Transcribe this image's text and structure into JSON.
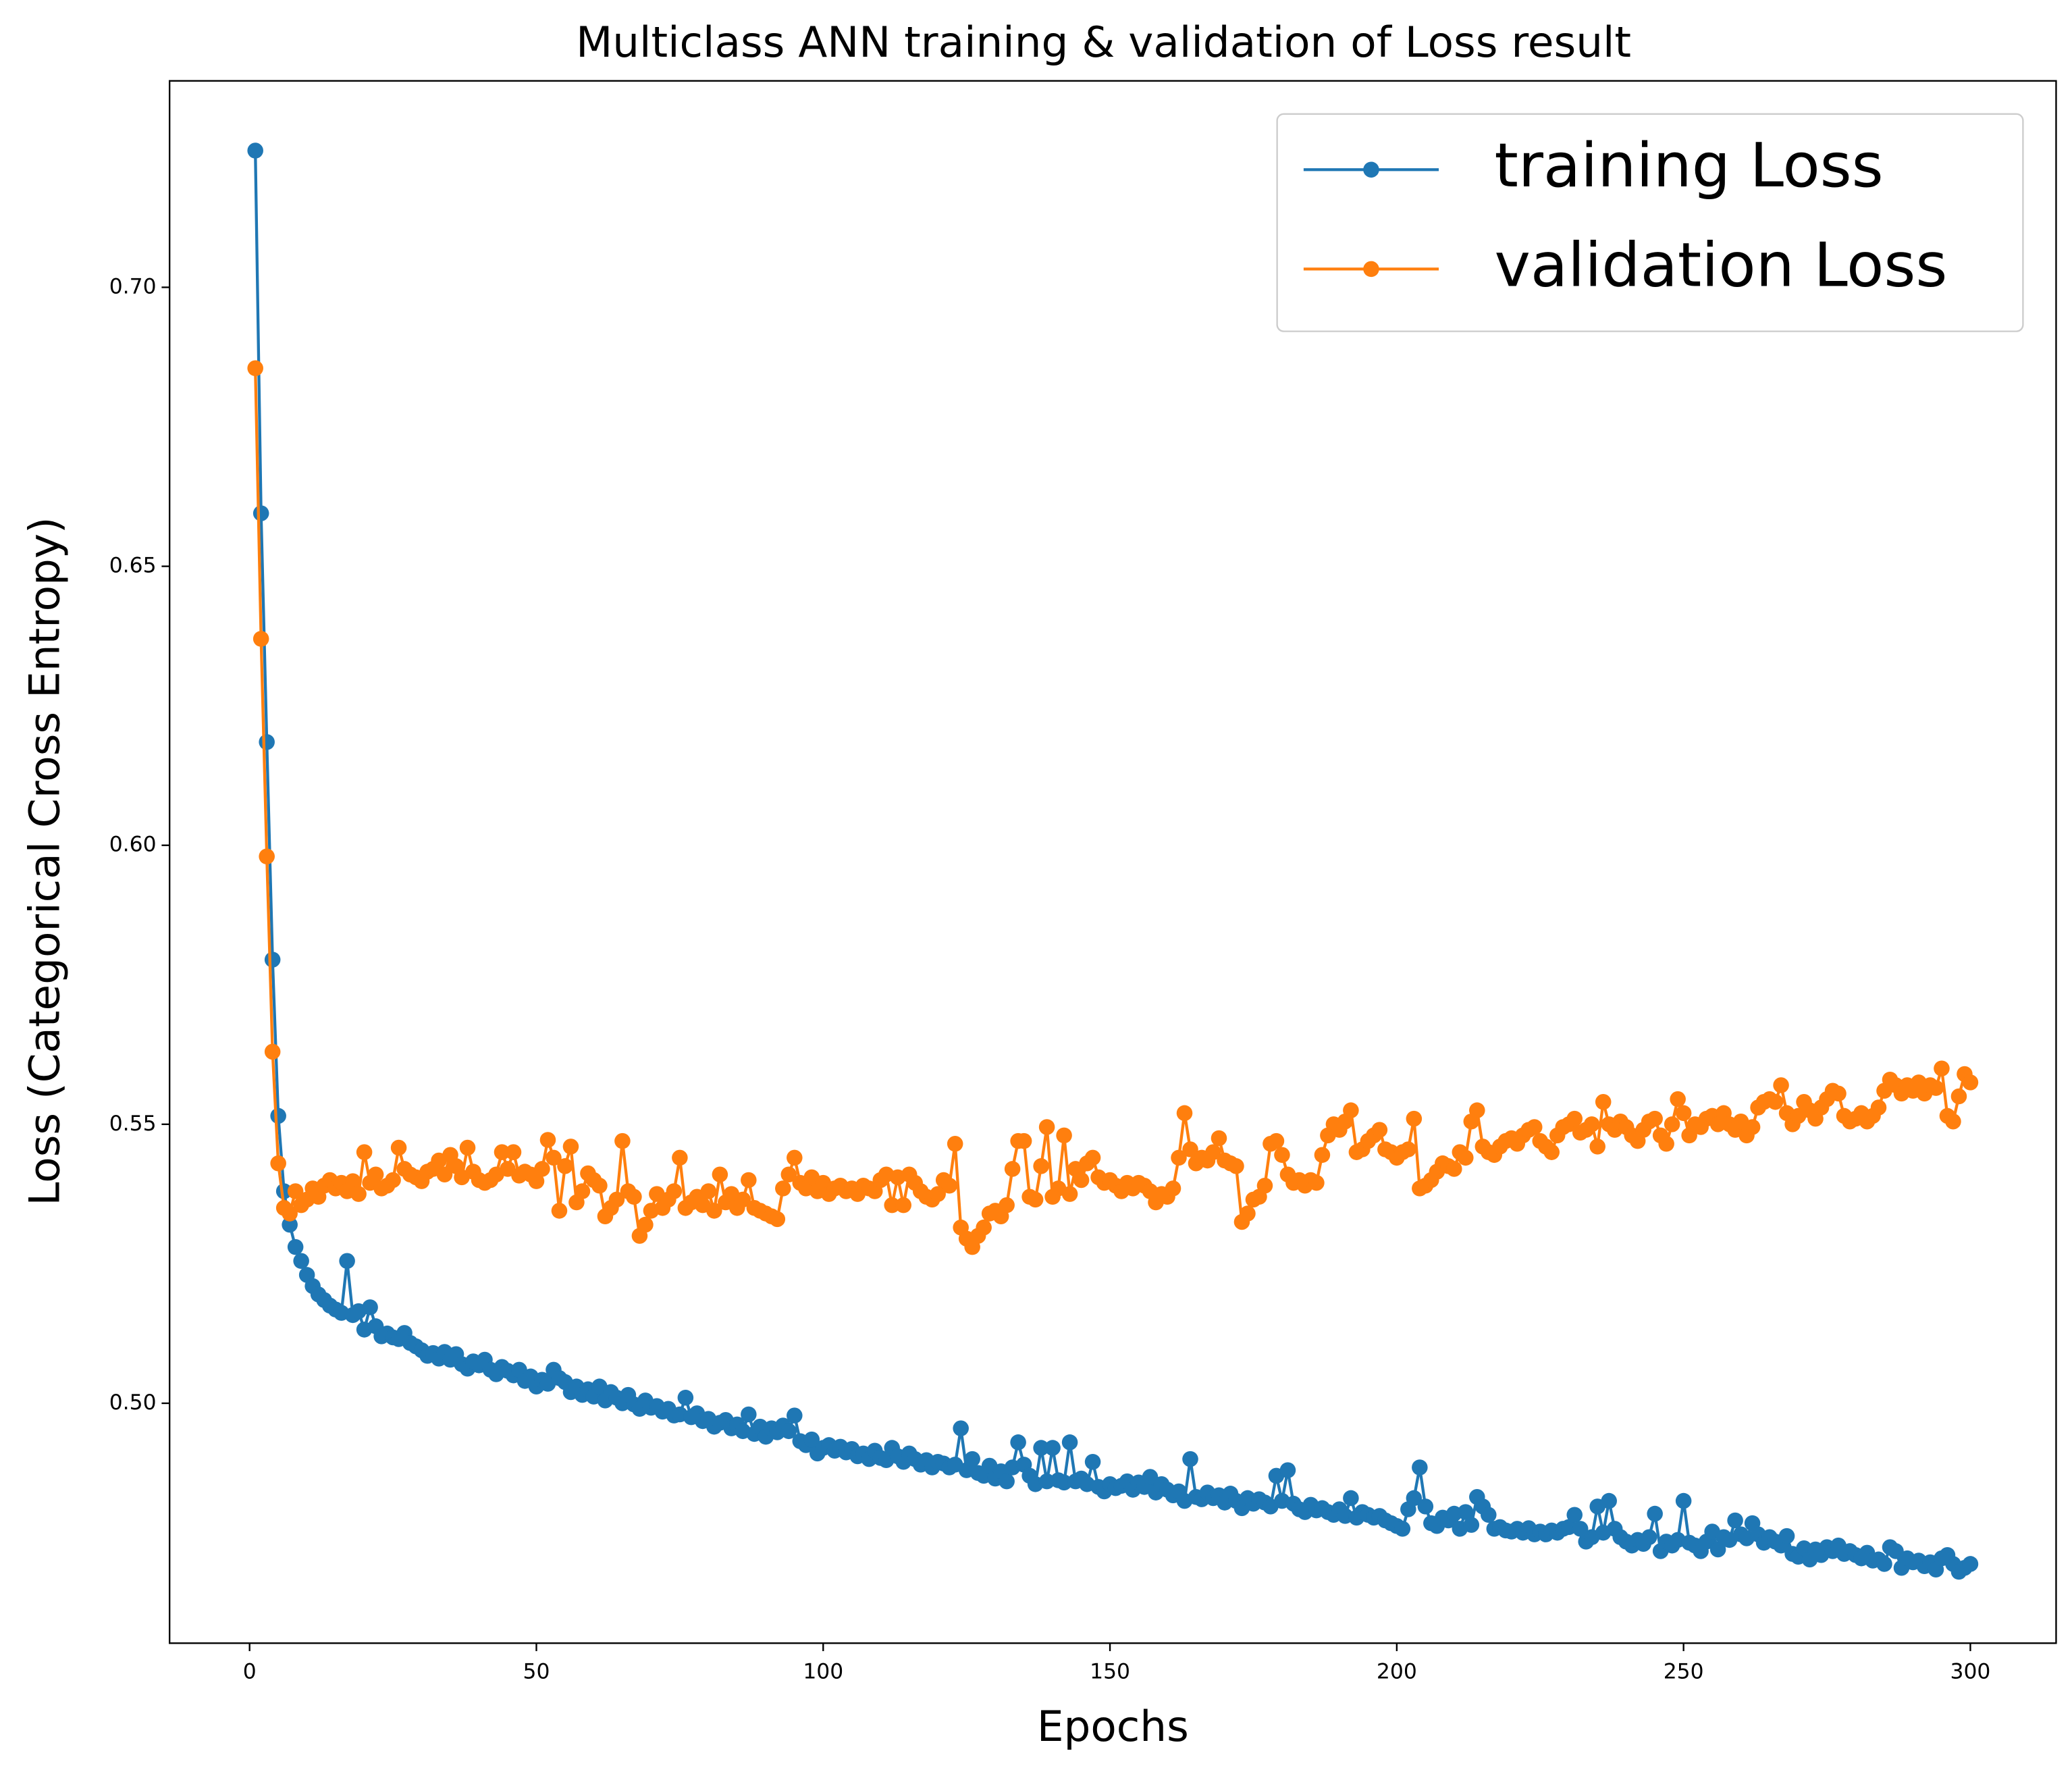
{
  "chart_data": {
    "type": "line",
    "title": "Multiclass ANN training & validation of Loss result",
    "xlabel": "Epochs",
    "ylabel": "Loss (Categorical Cross Entropy)",
    "xlim": [
      -13.95,
      314.95
    ],
    "ylim": [
      0.457,
      0.737
    ],
    "xticks": [
      0,
      50,
      100,
      150,
      200,
      250,
      300
    ],
    "yticks": [
      {
        "value": 0.5,
        "label": "0.50"
      },
      0.55,
      {
        "value": 0.6,
        "label": "0.60"
      },
      0.65,
      {
        "value": 0.7,
        "label": "0.70"
      }
    ],
    "legend": "upper right",
    "x": [
      1,
      2,
      3,
      4,
      5,
      6,
      7,
      8,
      9,
      10,
      11,
      12,
      13,
      14,
      15,
      16,
      17,
      18,
      19,
      20,
      21,
      22,
      23,
      24,
      25,
      26,
      27,
      28,
      29,
      30,
      31,
      32,
      33,
      34,
      35,
      36,
      37,
      38,
      39,
      40,
      41,
      42,
      43,
      44,
      45,
      46,
      47,
      48,
      49,
      50,
      51,
      52,
      53,
      54,
      55,
      56,
      57,
      58,
      59,
      60,
      61,
      62,
      63,
      64,
      65,
      66,
      67,
      68,
      69,
      70,
      71,
      72,
      73,
      74,
      75,
      76,
      77,
      78,
      79,
      80,
      81,
      82,
      83,
      84,
      85,
      86,
      87,
      88,
      89,
      90,
      91,
      92,
      93,
      94,
      95,
      96,
      97,
      98,
      99,
      100,
      101,
      102,
      103,
      104,
      105,
      106,
      107,
      108,
      109,
      110,
      111,
      112,
      113,
      114,
      115,
      116,
      117,
      118,
      119,
      120,
      121,
      122,
      123,
      124,
      125,
      126,
      127,
      128,
      129,
      130,
      131,
      132,
      133,
      134,
      135,
      136,
      137,
      138,
      139,
      140,
      141,
      142,
      143,
      144,
      145,
      146,
      147,
      148,
      149,
      150,
      151,
      152,
      153,
      154,
      155,
      156,
      157,
      158,
      159,
      160,
      161,
      162,
      163,
      164,
      165,
      166,
      167,
      168,
      169,
      170,
      171,
      172,
      173,
      174,
      175,
      176,
      177,
      178,
      179,
      180,
      181,
      182,
      183,
      184,
      185,
      186,
      187,
      188,
      189,
      190,
      191,
      192,
      193,
      194,
      195,
      196,
      197,
      198,
      199,
      200,
      201,
      202,
      203,
      204,
      205,
      206,
      207,
      208,
      209,
      210,
      211,
      212,
      213,
      214,
      215,
      216,
      217,
      218,
      219,
      220,
      221,
      222,
      223,
      224,
      225,
      226,
      227,
      228,
      229,
      230,
      231,
      232,
      233,
      234,
      235,
      236,
      237,
      238,
      239,
      240,
      241,
      242,
      243,
      244,
      245,
      246,
      247,
      248,
      249,
      250,
      251,
      252,
      253,
      254,
      255,
      256,
      257,
      258,
      259,
      260,
      261,
      262,
      263,
      264,
      265,
      266,
      267,
      268,
      269,
      270,
      271,
      272,
      273,
      274,
      275,
      276,
      277,
      278,
      279,
      280,
      281,
      282,
      283,
      284,
      285,
      286,
      287,
      288,
      289,
      290,
      291,
      292,
      293,
      294,
      295,
      296,
      297,
      298,
      299,
      300
    ],
    "series": [
      {
        "name": "training Loss",
        "color": "#1f77b4",
        "values": [
          0.7245,
          0.6595,
          0.6185,
          0.5795,
          0.5515,
          0.538,
          0.532,
          0.528,
          0.5255,
          0.523,
          0.521,
          0.5195,
          0.5185,
          0.5175,
          0.5168,
          0.5162,
          0.5255,
          0.5158,
          0.5165,
          0.5132,
          0.5172,
          0.5138,
          0.512,
          0.5125,
          0.5118,
          0.5115,
          0.5126,
          0.5108,
          0.5102,
          0.5095,
          0.5085,
          0.509,
          0.508,
          0.5092,
          0.5078,
          0.5088,
          0.507,
          0.5062,
          0.5075,
          0.5068,
          0.5078,
          0.506,
          0.5052,
          0.5065,
          0.5058,
          0.505,
          0.506,
          0.504,
          0.5048,
          0.503,
          0.5042,
          0.5035,
          0.506,
          0.5045,
          0.5038,
          0.502,
          0.503,
          0.5015,
          0.5025,
          0.5012,
          0.503,
          0.5005,
          0.502,
          0.501,
          0.5,
          0.5015,
          0.4998,
          0.499,
          0.5005,
          0.4992,
          0.4995,
          0.4985,
          0.499,
          0.4978,
          0.498,
          0.501,
          0.4975,
          0.4982,
          0.4968,
          0.4972,
          0.4958,
          0.4965,
          0.497,
          0.4955,
          0.4962,
          0.495,
          0.498,
          0.4945,
          0.4958,
          0.494,
          0.4955,
          0.4948,
          0.496,
          0.495,
          0.4978,
          0.4932,
          0.4925,
          0.4935,
          0.491,
          0.492,
          0.4925,
          0.4915,
          0.4922,
          0.4912,
          0.4918,
          0.4905,
          0.491,
          0.49,
          0.4915,
          0.4902,
          0.4898,
          0.492,
          0.4905,
          0.4895,
          0.491,
          0.49,
          0.489,
          0.4898,
          0.4885,
          0.4895,
          0.4892,
          0.4885,
          0.489,
          0.4955,
          0.488,
          0.49,
          0.4875,
          0.487,
          0.4888,
          0.4865,
          0.4878,
          0.486,
          0.4885,
          0.493,
          0.489,
          0.487,
          0.4855,
          0.492,
          0.486,
          0.492,
          0.4862,
          0.4858,
          0.493,
          0.486,
          0.4865,
          0.4855,
          0.4895,
          0.485,
          0.4842,
          0.4855,
          0.4848,
          0.4852,
          0.486,
          0.4845,
          0.4858,
          0.485,
          0.4868,
          0.484,
          0.4855,
          0.4845,
          0.4835,
          0.4842,
          0.4825,
          0.49,
          0.4832,
          0.4828,
          0.484,
          0.483,
          0.4835,
          0.4822,
          0.4838,
          0.4825,
          0.4812,
          0.483,
          0.482,
          0.4828,
          0.4822,
          0.4815,
          0.487,
          0.4825,
          0.488,
          0.482,
          0.481,
          0.4805,
          0.4818,
          0.4808,
          0.4812,
          0.4805,
          0.48,
          0.481,
          0.4798,
          0.483,
          0.4795,
          0.4805,
          0.48,
          0.4795,
          0.4798,
          0.479,
          0.4785,
          0.478,
          0.4775,
          0.481,
          0.483,
          0.4885,
          0.4815,
          0.4785,
          0.478,
          0.4795,
          0.479,
          0.4802,
          0.4775,
          0.4805,
          0.4782,
          0.4832,
          0.4815,
          0.48,
          0.4775,
          0.4778,
          0.4772,
          0.477,
          0.4775,
          0.4768,
          0.4776,
          0.4765,
          0.477,
          0.4765,
          0.4772,
          0.4768,
          0.4775,
          0.4778,
          0.48,
          0.4775,
          0.4752,
          0.476,
          0.4815,
          0.4768,
          0.4825,
          0.4775,
          0.476,
          0.4752,
          0.4745,
          0.4755,
          0.4748,
          0.476,
          0.4802,
          0.4735,
          0.4752,
          0.4745,
          0.4755,
          0.4825,
          0.475,
          0.4745,
          0.4735,
          0.4752,
          0.477,
          0.4738,
          0.476,
          0.4755,
          0.479,
          0.4765,
          0.4758,
          0.4785,
          0.4765,
          0.475,
          0.476,
          0.4752,
          0.4745,
          0.4762,
          0.473,
          0.4725,
          0.474,
          0.472,
          0.4738,
          0.4728,
          0.4742,
          0.4735,
          0.4745,
          0.473,
          0.4735,
          0.4728,
          0.4722,
          0.4732,
          0.4718,
          0.472,
          0.4712,
          0.4742,
          0.4735,
          0.4705,
          0.4722,
          0.4715,
          0.4718,
          0.4708,
          0.4715,
          0.4702,
          0.4722,
          0.4728,
          0.4712,
          0.4698,
          0.4705,
          0.4712
        ]
      },
      {
        "name": "validation Loss",
        "color": "#ff7f0e",
        "values": [
          0.6855,
          0.637,
          0.598,
          0.563,
          0.543,
          0.535,
          0.534,
          0.538,
          0.5355,
          0.5365,
          0.5385,
          0.537,
          0.539,
          0.54,
          0.5385,
          0.5395,
          0.538,
          0.5398,
          0.5375,
          0.545,
          0.5395,
          0.541,
          0.5385,
          0.539,
          0.54,
          0.5458,
          0.542,
          0.541,
          0.5405,
          0.5398,
          0.5415,
          0.542,
          0.5435,
          0.541,
          0.5445,
          0.5425,
          0.5405,
          0.5458,
          0.5415,
          0.54,
          0.5395,
          0.54,
          0.541,
          0.545,
          0.542,
          0.545,
          0.5408,
          0.5415,
          0.541,
          0.5398,
          0.542,
          0.5472,
          0.544,
          0.5345,
          0.5425,
          0.546,
          0.536,
          0.538,
          0.5412,
          0.54,
          0.539,
          0.5335,
          0.535,
          0.5365,
          0.547,
          0.538,
          0.537,
          0.53,
          0.532,
          0.5345,
          0.5375,
          0.535,
          0.5365,
          0.538,
          0.544,
          0.535,
          0.536,
          0.537,
          0.5355,
          0.538,
          0.5345,
          0.541,
          0.536,
          0.5375,
          0.535,
          0.5365,
          0.54,
          0.535,
          0.5345,
          0.534,
          0.5335,
          0.533,
          0.5385,
          0.541,
          0.544,
          0.5395,
          0.5385,
          0.5405,
          0.538,
          0.5395,
          0.5375,
          0.5385,
          0.539,
          0.538,
          0.5385,
          0.5375,
          0.539,
          0.5385,
          0.538,
          0.54,
          0.541,
          0.5355,
          0.5405,
          0.5355,
          0.541,
          0.5395,
          0.538,
          0.537,
          0.5365,
          0.5375,
          0.54,
          0.539,
          0.5465,
          0.5315,
          0.5295,
          0.528,
          0.53,
          0.5315,
          0.534,
          0.5345,
          0.5335,
          0.5355,
          0.542,
          0.547,
          0.547,
          0.537,
          0.5365,
          0.5425,
          0.5495,
          0.537,
          0.5385,
          0.548,
          0.5375,
          0.542,
          0.54,
          0.543,
          0.544,
          0.5405,
          0.5395,
          0.54,
          0.539,
          0.538,
          0.5395,
          0.5385,
          0.5395,
          0.539,
          0.538,
          0.536,
          0.5375,
          0.537,
          0.5385,
          0.544,
          0.552,
          0.5455,
          0.543,
          0.544,
          0.5435,
          0.545,
          0.5475,
          0.5435,
          0.543,
          0.5425,
          0.5325,
          0.534,
          0.5365,
          0.537,
          0.539,
          0.5465,
          0.547,
          0.5445,
          0.541,
          0.5395,
          0.54,
          0.539,
          0.54,
          0.5395,
          0.5445,
          0.548,
          0.55,
          0.549,
          0.5505,
          0.5525,
          0.545,
          0.5455,
          0.547,
          0.548,
          0.549,
          0.5455,
          0.545,
          0.544,
          0.545,
          0.5455,
          0.551,
          0.5385,
          0.539,
          0.54,
          0.5415,
          0.543,
          0.5425,
          0.542,
          0.545,
          0.544,
          0.5505,
          0.5525,
          0.546,
          0.545,
          0.5445,
          0.546,
          0.547,
          0.5475,
          0.5465,
          0.548,
          0.549,
          0.5495,
          0.547,
          0.546,
          0.545,
          0.548,
          0.5495,
          0.55,
          0.551,
          0.5485,
          0.549,
          0.55,
          0.546,
          0.554,
          0.55,
          0.549,
          0.5505,
          0.5495,
          0.548,
          0.547,
          0.549,
          0.5505,
          0.551,
          0.548,
          0.5465,
          0.55,
          0.5545,
          0.552,
          0.548,
          0.55,
          0.5495,
          0.551,
          0.5515,
          0.55,
          0.552,
          0.55,
          0.549,
          0.5505,
          0.548,
          0.5495,
          0.553,
          0.554,
          0.5545,
          0.554,
          0.557,
          0.552,
          0.55,
          0.5515,
          0.554,
          0.5525,
          0.551,
          0.553,
          0.5545,
          0.556,
          0.5555,
          0.5515,
          0.5505,
          0.551,
          0.552,
          0.5505,
          0.5515,
          0.553,
          0.556,
          0.558,
          0.557,
          0.5555,
          0.557,
          0.556,
          0.5575,
          0.5555,
          0.557,
          0.5565,
          0.56,
          0.5515,
          0.5505,
          0.555,
          0.559,
          0.5575
        ]
      }
    ]
  }
}
